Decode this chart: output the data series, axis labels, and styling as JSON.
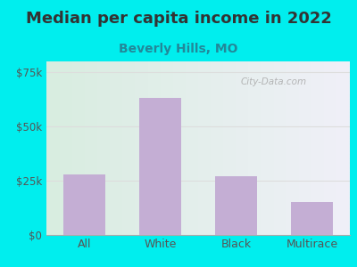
{
  "title": "Median per capita income in 2022",
  "subtitle": "Beverly Hills, MO",
  "categories": [
    "All",
    "White",
    "Black",
    "Multirace"
  ],
  "values": [
    28000,
    63000,
    27000,
    15000
  ],
  "bar_color": "#c4aed4",
  "title_fontsize": 13,
  "subtitle_fontsize": 10,
  "subtitle_color": "#228899",
  "title_color": "#333333",
  "tick_color": "#555555",
  "background_outer": "#00eeee",
  "bg_top_left": "#d8ede0",
  "bg_top_right": "#f0f0f8",
  "bg_bottom_left": "#d8ede0",
  "bg_bottom_right": "#f0f0f8",
  "ylim": [
    0,
    80000
  ],
  "yticks": [
    0,
    25000,
    50000,
    75000
  ],
  "ytick_labels": [
    "$0",
    "$25k",
    "$50k",
    "$75k"
  ],
  "watermark": "City-Data.com",
  "grid_color": "#dddddd"
}
